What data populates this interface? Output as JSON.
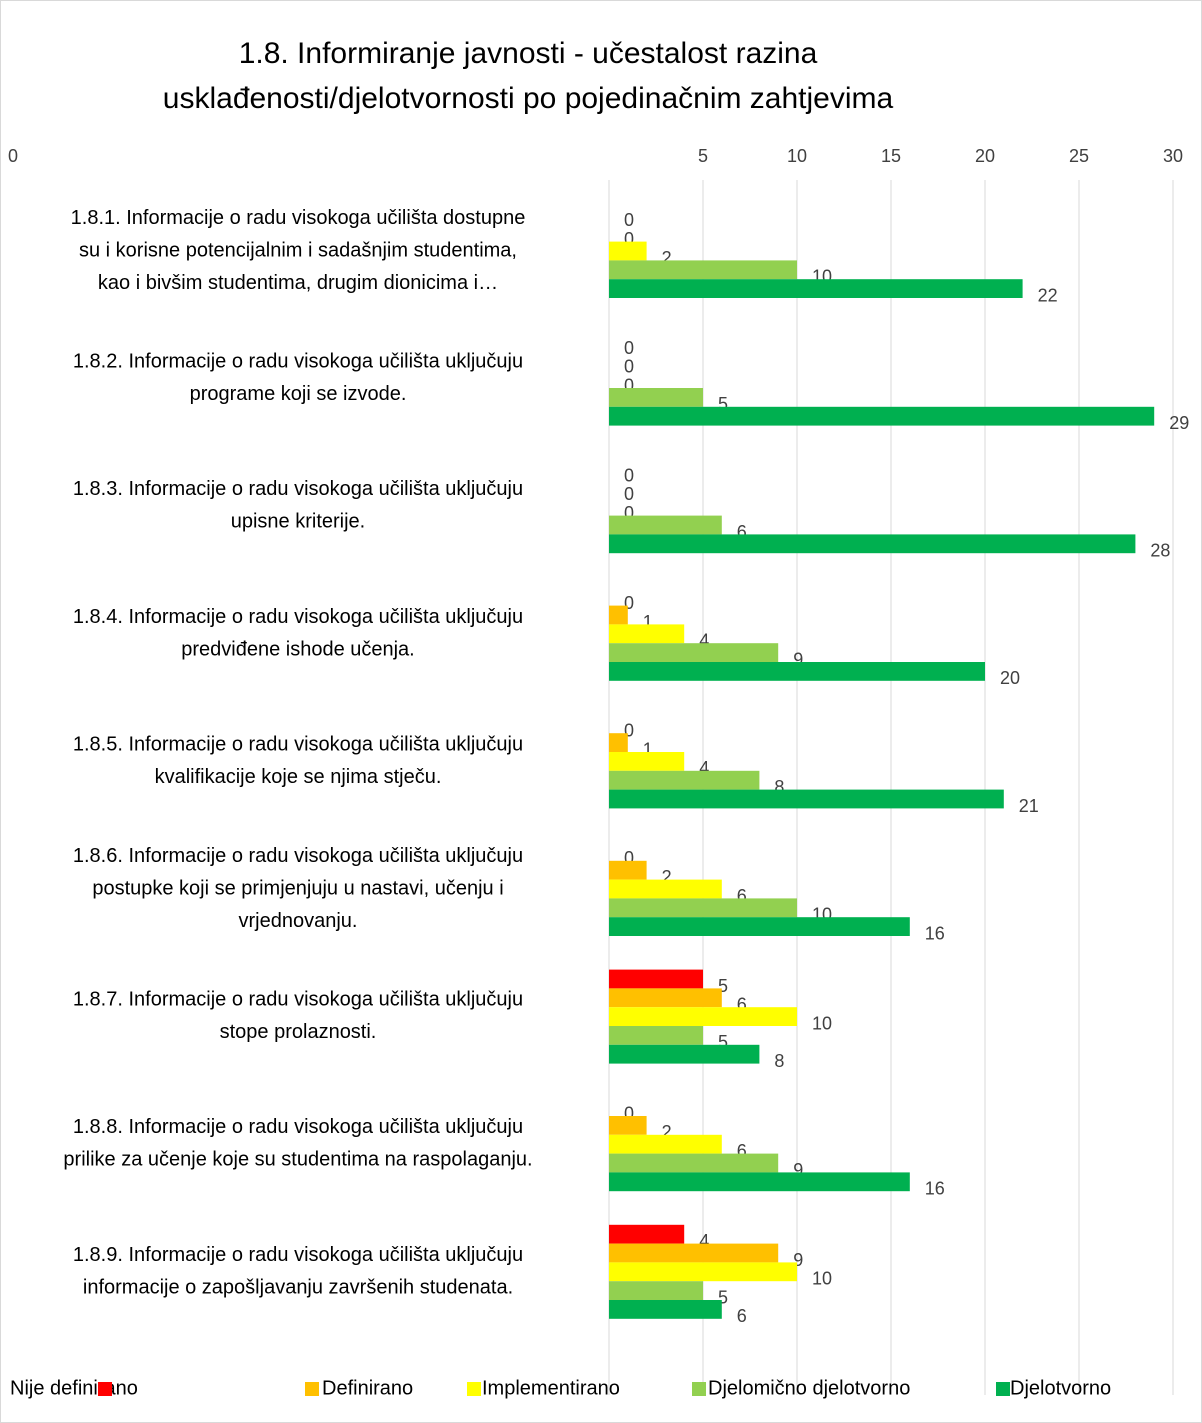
{
  "chart_data": {
    "type": "barh",
    "title": [
      "1.8. Informiranje javnosti - učestalost razina",
      "usklađenosti/djelotvornosti po pojedinačnim zahtjevima"
    ],
    "categories": [
      [
        "1.8.1. Informacije o radu visokoga učilišta dostupne",
        "su i korisne potencijalnim i sadašnjim studentima,",
        "kao i bivšim studentima, drugim dionicima i…"
      ],
      [
        "1.8.2. Informacije o radu visokoga učilišta uključuju",
        "programe koji se izvode."
      ],
      [
        "1.8.3. Informacije o radu visokoga učilišta uključuju",
        "upisne kriterije."
      ],
      [
        "1.8.4. Informacije o radu visokoga učilišta uključuju",
        "predviđene ishode učenja."
      ],
      [
        "1.8.5. Informacije o radu visokoga učilišta uključuju",
        "kvalifikacije koje se njima stječu."
      ],
      [
        "1.8.6. Informacije o radu visokoga učilišta uključuju",
        "postupke koji se primjenjuju u nastavi, učenju i",
        "vrjednovanju."
      ],
      [
        "1.8.7. Informacije o radu visokoga učilišta uključuju",
        "stope prolaznosti."
      ],
      [
        "1.8.8. Informacije o radu visokoga učilišta uključuju",
        "prilike za učenje koje su studentima na raspolaganju."
      ],
      [
        "1.8.9. Informacije o radu visokoga učilišta uključuju",
        "informacije o zapošljavanju završenih studenata."
      ]
    ],
    "series": [
      {
        "name": "Nije definirano",
        "color": "#ff0000",
        "values": [
          0,
          0,
          0,
          0,
          0,
          0,
          5,
          0,
          4
        ]
      },
      {
        "name": "Definirano",
        "color": "#ffc000",
        "values": [
          0,
          0,
          0,
          1,
          1,
          2,
          6,
          2,
          9
        ]
      },
      {
        "name": "Implementirano",
        "color": "#ffff00",
        "values": [
          2,
          0,
          0,
          4,
          4,
          6,
          10,
          6,
          10
        ]
      },
      {
        "name": "Djelomično djelotvorno",
        "color": "#92d050",
        "values": [
          10,
          5,
          6,
          9,
          8,
          10,
          5,
          9,
          5
        ]
      },
      {
        "name": "Djelotvorno",
        "color": "#00b050",
        "values": [
          22,
          29,
          28,
          20,
          21,
          16,
          8,
          16,
          6
        ]
      }
    ],
    "xlim": [
      0,
      30
    ],
    "xticks": [
      0,
      5,
      10,
      15,
      20,
      25,
      30
    ],
    "grid": true,
    "legend": "bottom"
  }
}
